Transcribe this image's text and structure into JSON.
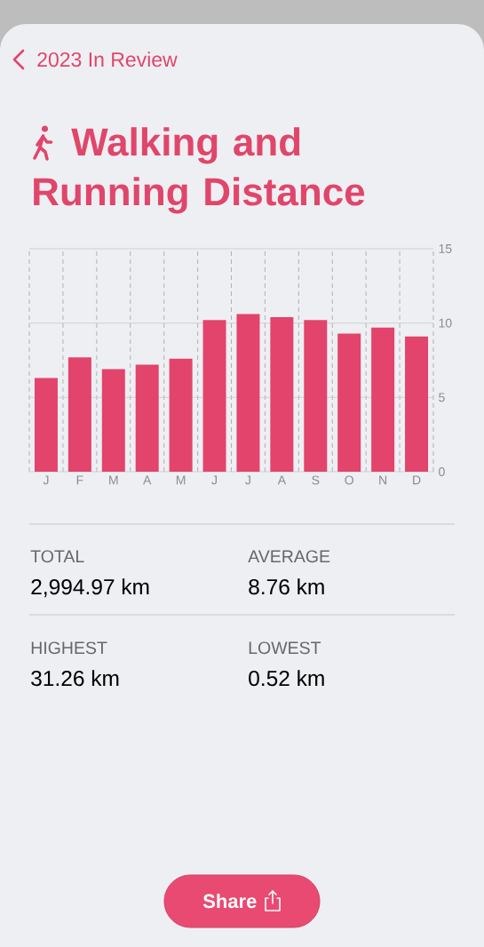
{
  "chart_data": {
    "type": "bar",
    "title": "Walking and Running Distance",
    "categories": [
      "J",
      "F",
      "M",
      "A",
      "M",
      "J",
      "J",
      "A",
      "S",
      "O",
      "N",
      "D"
    ],
    "values": [
      6.3,
      7.7,
      6.9,
      7.2,
      7.6,
      10.2,
      10.6,
      10.4,
      10.2,
      9.3,
      9.7,
      9.1
    ],
    "color": "#e2446c",
    "ylim": [
      0,
      15
    ],
    "yticks": [
      0,
      5,
      10,
      15
    ],
    "grid": true,
    "annotations": [
      "2023 In Review",
      "TOTAL",
      "2,994.97 km",
      "AVERAGE",
      "8.76 km",
      "HIGHEST",
      "31.26 km",
      "LOWEST",
      "0.52 km",
      "Share"
    ]
  }
}
